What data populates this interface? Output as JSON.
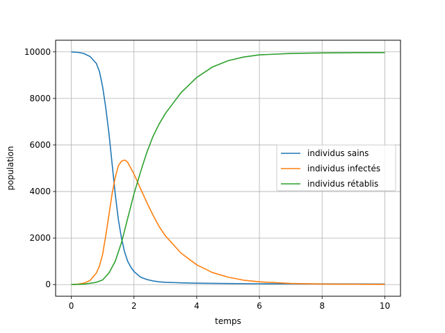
{
  "chart_data": {
    "type": "line",
    "title": "",
    "xlabel": "temps",
    "ylabel": "population",
    "xlim": [
      -0.5,
      10.5
    ],
    "ylim": [
      -500,
      10500
    ],
    "xticks": [
      0,
      2,
      4,
      6,
      8,
      10
    ],
    "yticks": [
      0,
      2000,
      4000,
      6000,
      8000,
      10000
    ],
    "grid": true,
    "legend_position": "center-right",
    "series": [
      {
        "name": "individus sains",
        "color": "#1f77b4",
        "x": [
          0,
          0.2,
          0.4,
          0.6,
          0.8,
          0.9,
          1.0,
          1.1,
          1.2,
          1.3,
          1.4,
          1.5,
          1.6,
          1.7,
          1.8,
          1.9,
          2.0,
          2.2,
          2.4,
          2.6,
          2.8,
          3.0,
          3.5,
          4.0,
          5.0,
          6.0,
          7.0,
          8.0,
          9.0,
          10.0
        ],
        "y": [
          10000,
          9980,
          9930,
          9800,
          9500,
          9150,
          8500,
          7600,
          6500,
          5200,
          3900,
          2800,
          2000,
          1400,
          1000,
          750,
          560,
          330,
          220,
          160,
          120,
          100,
          75,
          60,
          45,
          38,
          33,
          30,
          28,
          26
        ]
      },
      {
        "name": "individus infectés",
        "color": "#ff7f0e",
        "x": [
          0,
          0.2,
          0.4,
          0.6,
          0.8,
          0.9,
          1.0,
          1.1,
          1.2,
          1.3,
          1.4,
          1.5,
          1.6,
          1.7,
          1.75,
          1.8,
          1.9,
          2.0,
          2.2,
          2.4,
          2.6,
          2.8,
          3.0,
          3.5,
          4.0,
          4.5,
          5.0,
          5.5,
          6.0,
          7.0,
          8.0,
          9.0,
          10.0
        ],
        "y": [
          0,
          20,
          60,
          180,
          500,
          800,
          1300,
          2100,
          3000,
          3900,
          4600,
          5100,
          5300,
          5350,
          5320,
          5250,
          5000,
          4750,
          4150,
          3550,
          3000,
          2500,
          2100,
          1350,
          850,
          520,
          320,
          190,
          120,
          50,
          25,
          15,
          10
        ]
      },
      {
        "name": "individus rétablis",
        "color": "#2ca02c",
        "x": [
          0,
          0.4,
          0.8,
          1.0,
          1.2,
          1.4,
          1.6,
          1.8,
          2.0,
          2.2,
          2.4,
          2.6,
          2.8,
          3.0,
          3.5,
          4.0,
          4.5,
          5.0,
          5.5,
          6.0,
          7.0,
          8.0,
          9.0,
          10.0
        ],
        "y": [
          0,
          20,
          100,
          200,
          500,
          1000,
          1800,
          2850,
          3900,
          4800,
          5650,
          6350,
          6900,
          7350,
          8250,
          8900,
          9350,
          9620,
          9780,
          9870,
          9930,
          9955,
          9965,
          9970
        ]
      }
    ]
  }
}
